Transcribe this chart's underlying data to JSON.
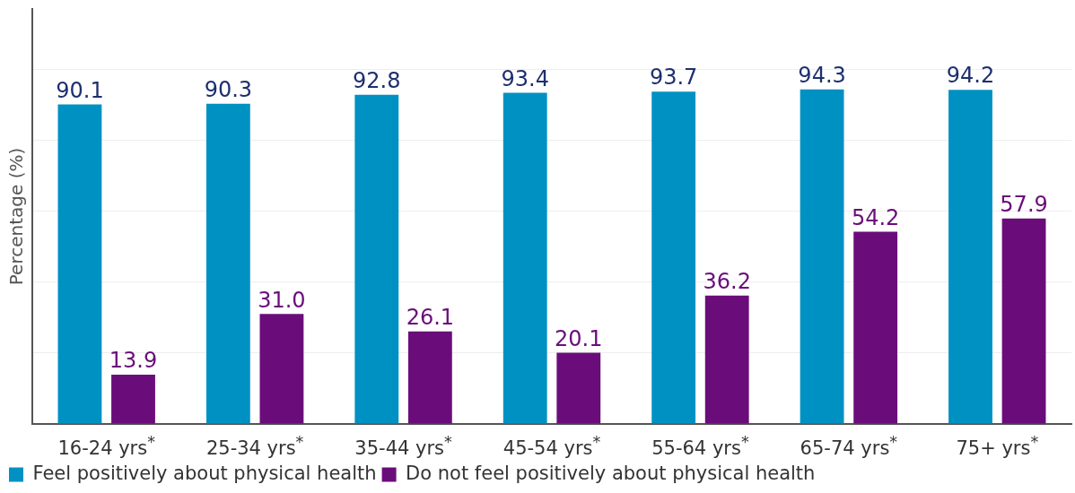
{
  "chart_data": {
    "type": "bar",
    "ylabel": "Percentage (%)",
    "categories": [
      "16-24 yrs$^{*}$",
      "25-34 yrs$^{*}$",
      "35-44 yrs$^{*}$",
      "45-54 yrs$^{*}$",
      "55-64 yrs$^{*}$",
      "65-74 yrs$^{*}$",
      "75+ yrs$^{*}$"
    ],
    "series": [
      {
        "name": "Feel positively about physical health",
        "color": "#0091c3",
        "values": [
          90.1,
          90.3,
          92.8,
          93.4,
          93.7,
          94.3,
          94.2
        ],
        "value_labels": [
          "90.1",
          "90.3",
          "92.8",
          "93.4",
          "93.7",
          "94.3",
          "94.2"
        ]
      },
      {
        "name": "Do not feel positively about physical health",
        "color": "#6a0d7a",
        "values": [
          13.9,
          31.0,
          26.1,
          20.1,
          36.2,
          54.2,
          57.9
        ],
        "value_labels": [
          "13.9",
          "31.0",
          "26.1",
          "20.1",
          "36.2",
          "54.2",
          "57.9"
        ]
      }
    ],
    "ylim": [
      0,
      117
    ],
    "yticks": [
      {
        "value": 0,
        "label": null
      },
      {
        "value": 20,
        "label": null
      },
      {
        "value": 40,
        "label": null
      },
      {
        "value": 60,
        "label": null
      },
      {
        "value": 80,
        "label": null
      },
      {
        "value": 100,
        "label": null
      }
    ],
    "grid": "y",
    "legend": "bottom",
    "tick_labels": "x"
  }
}
